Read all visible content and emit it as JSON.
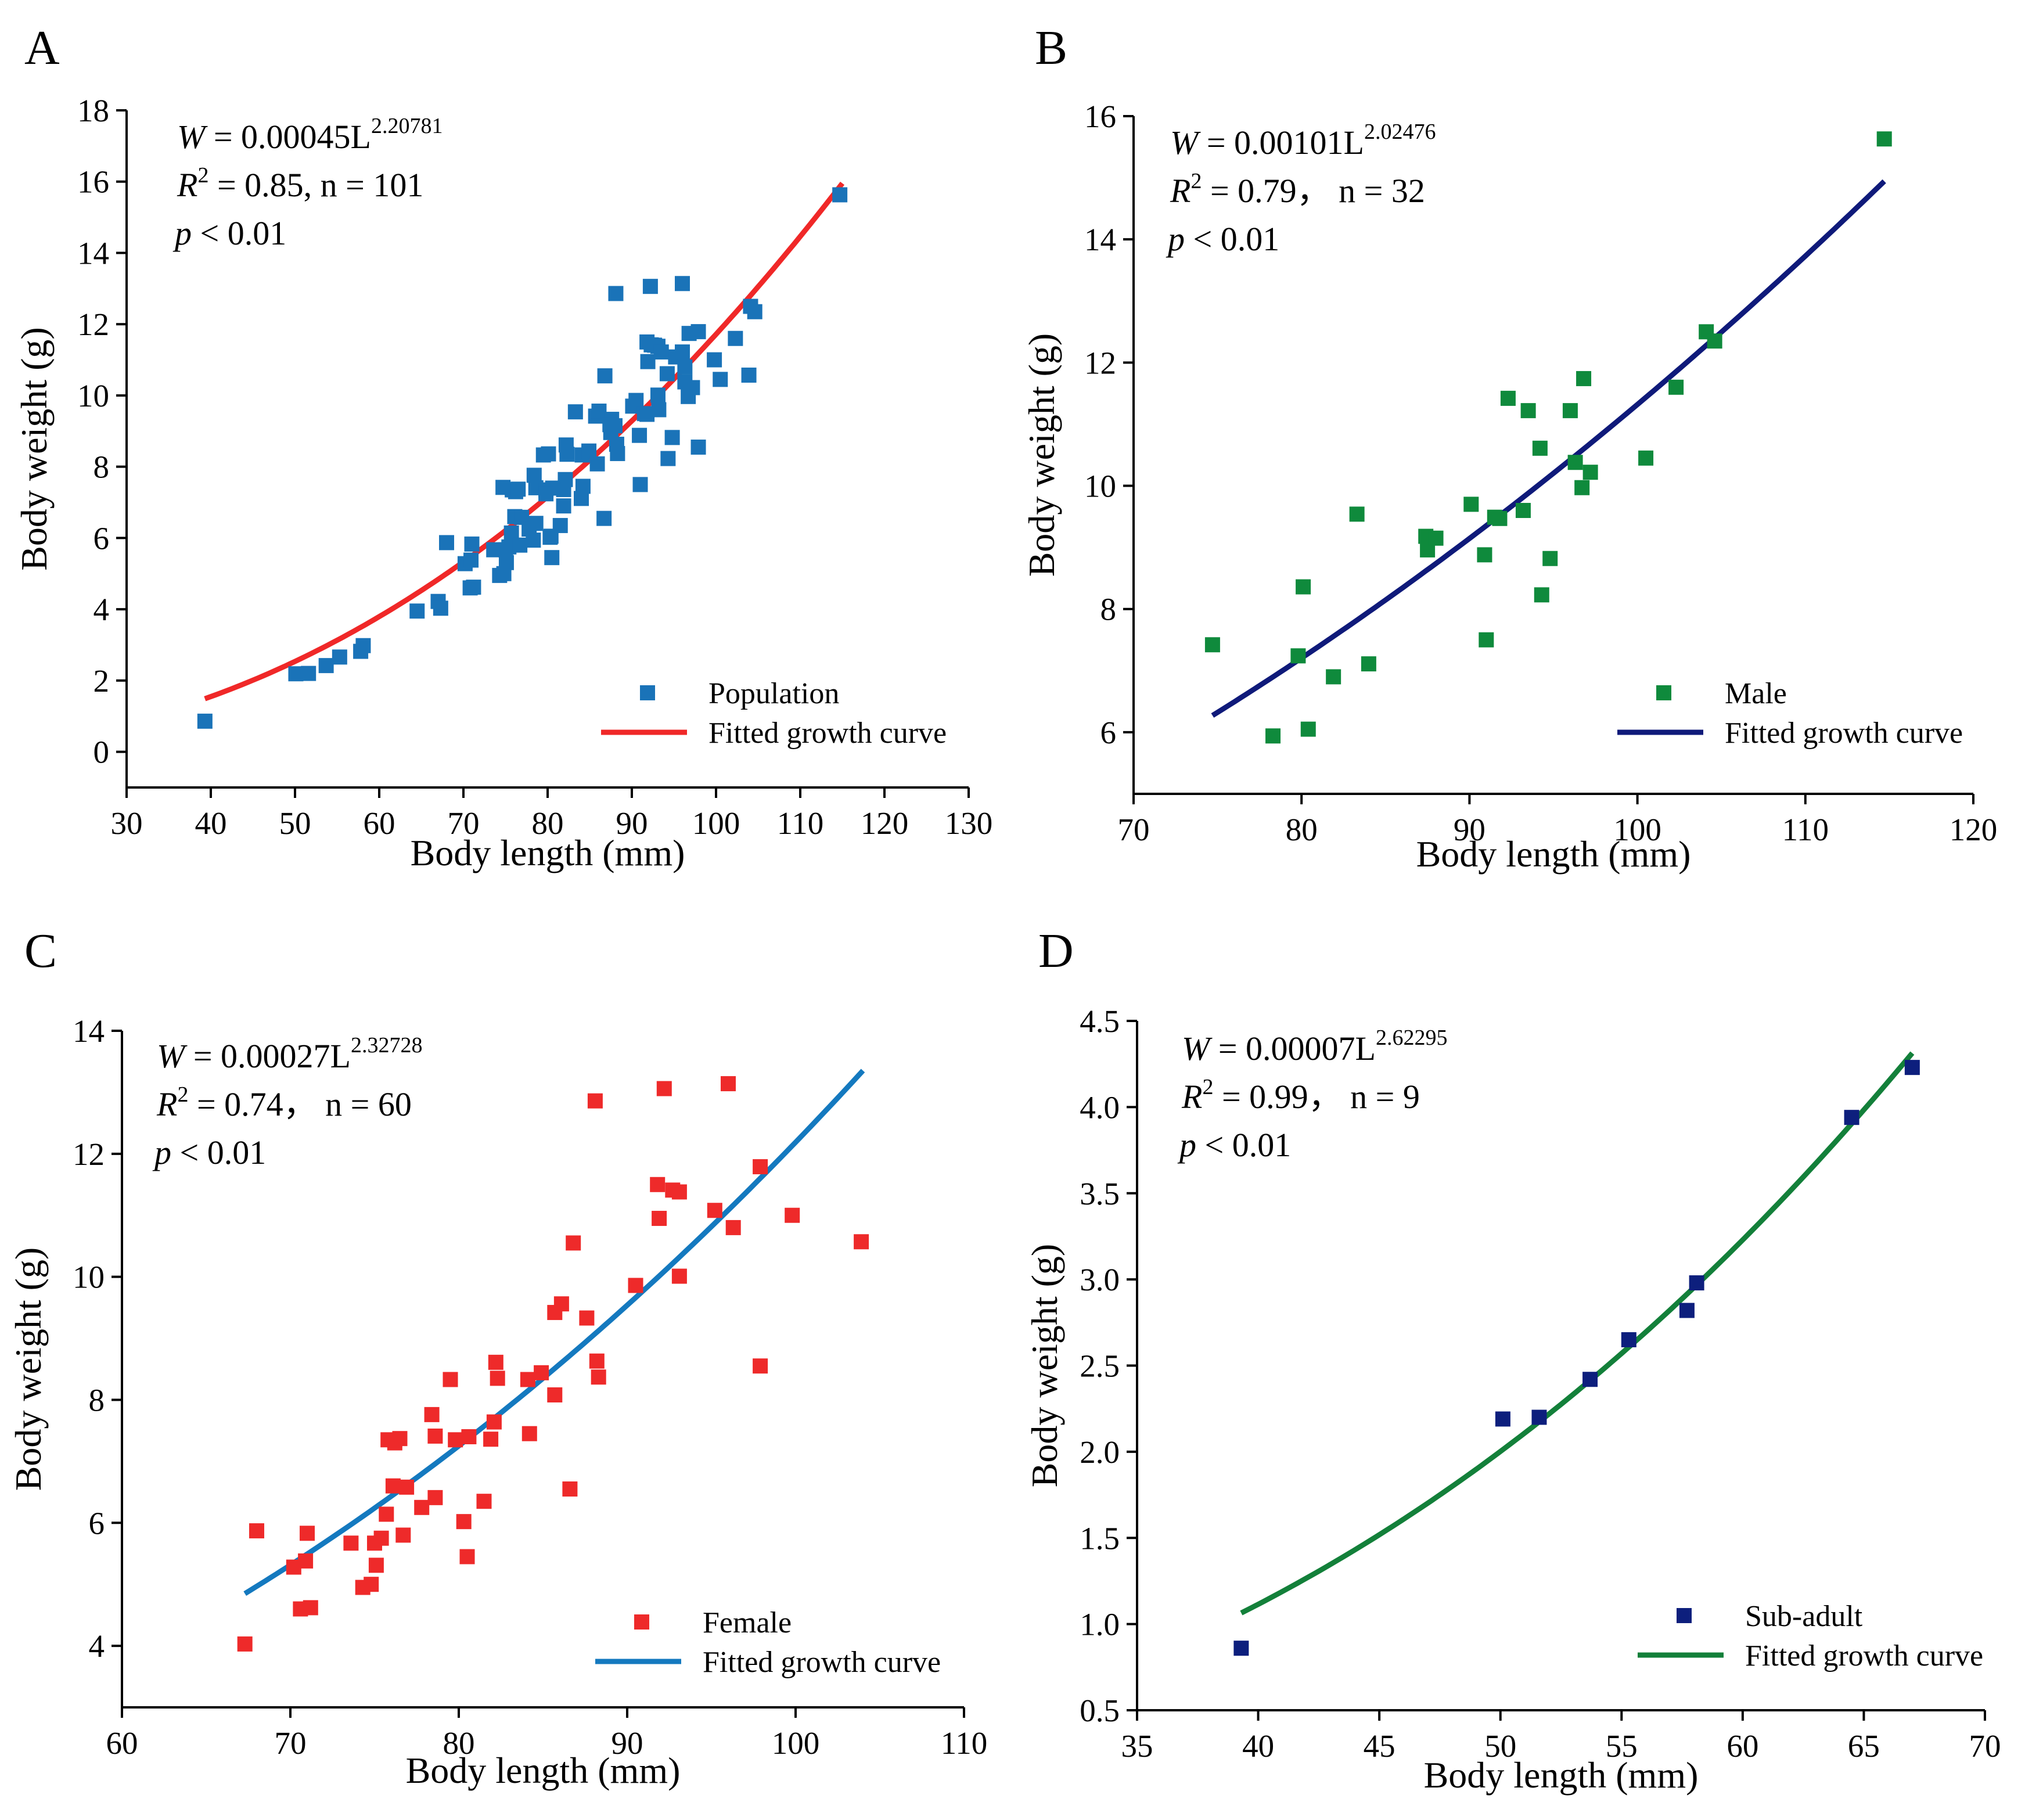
{
  "chart_data": [
    {
      "panel": "A",
      "type": "scatter",
      "xlabel": "Body length (mm)",
      "ylabel": "Body weight (g)",
      "xlim": [
        30,
        130
      ],
      "ylim": [
        -1,
        18
      ],
      "xticks": [
        30,
        40,
        50,
        60,
        70,
        80,
        90,
        100,
        110,
        120,
        130
      ],
      "yticks": [
        0,
        2,
        4,
        6,
        8,
        10,
        12,
        14,
        16,
        18
      ],
      "tick_decimals": 0,
      "equation": {
        "lhs": "W",
        "rhs": " = 0.00045L",
        "exponent": "2.20781",
        "r2_label": "R",
        "r2_sup": "2",
        "r2_value": " = 0.85, n = 101",
        "p_label": "p",
        "p_value": " < 0.01"
      },
      "legend": {
        "position": "bottom-right",
        "points_label": "Population",
        "curve_label": "Fitted growth curve"
      },
      "colors": {
        "points": "#1a73b8",
        "curve": "#f02828"
      },
      "fit": {
        "a": 0.00045,
        "b": 2.20781,
        "x_range": [
          39.3,
          115
        ]
      },
      "points": [
        [
          39.3,
          0.86
        ],
        [
          50.1,
          2.19
        ],
        [
          51.6,
          2.2
        ],
        [
          53.7,
          2.42
        ],
        [
          55.3,
          2.66
        ],
        [
          57.8,
          2.82
        ],
        [
          58.1,
          2.98
        ],
        [
          64.5,
          3.95
        ],
        [
          67.0,
          4.22
        ],
        [
          67.3,
          4.03
        ],
        [
          68.0,
          5.87
        ],
        [
          70.2,
          5.28
        ],
        [
          70.8,
          4.6
        ],
        [
          70.9,
          5.38
        ],
        [
          71.2,
          4.62
        ],
        [
          71.0,
          5.83
        ],
        [
          73.6,
          5.67
        ],
        [
          74.3,
          4.95
        ],
        [
          74.8,
          5.0
        ],
        [
          75.0,
          5.67
        ],
        [
          75.1,
          5.31
        ],
        [
          75.4,
          5.75
        ],
        [
          75.7,
          6.14
        ],
        [
          75.8,
          7.35
        ],
        [
          76.1,
          6.6
        ],
        [
          76.2,
          7.3
        ],
        [
          76.5,
          7.37
        ],
        [
          76.7,
          5.8
        ],
        [
          76.9,
          6.58
        ],
        [
          77.8,
          6.25
        ],
        [
          78.4,
          7.76
        ],
        [
          78.6,
          6.41
        ],
        [
          78.6,
          7.41
        ],
        [
          79.5,
          8.33
        ],
        [
          79.8,
          7.35
        ],
        [
          80.3,
          6.02
        ],
        [
          80.5,
          5.45
        ],
        [
          80.6,
          7.4
        ],
        [
          81.5,
          6.35
        ],
        [
          81.9,
          7.36
        ],
        [
          82.1,
          7.64
        ],
        [
          82.2,
          8.61
        ],
        [
          82.3,
          8.35
        ],
        [
          84.1,
          8.33
        ],
        [
          84.2,
          7.45
        ],
        [
          84.9,
          8.44
        ],
        [
          85.7,
          9.42
        ],
        [
          85.9,
          8.08
        ],
        [
          86.1,
          9.56
        ],
        [
          86.7,
          6.55
        ],
        [
          86.8,
          10.55
        ],
        [
          87.6,
          9.33
        ],
        [
          88.1,
          12.86
        ],
        [
          88.2,
          8.63
        ],
        [
          88.3,
          8.37
        ],
        [
          90.5,
          9.86
        ],
        [
          91.8,
          11.5
        ],
        [
          91.9,
          10.95
        ],
        [
          92.2,
          13.06
        ],
        [
          92.7,
          11.41
        ],
        [
          93.1,
          10.01
        ],
        [
          93.1,
          11.38
        ],
        [
          95.2,
          11.08
        ],
        [
          96.0,
          13.14
        ],
        [
          96.3,
          10.8
        ],
        [
          97.9,
          11.79
        ],
        [
          97.9,
          8.55
        ],
        [
          99.8,
          11.0
        ],
        [
          103.9,
          10.57
        ],
        [
          74.7,
          7.42
        ],
        [
          78.3,
          5.94
        ],
        [
          79.8,
          7.24
        ],
        [
          80.1,
          8.36
        ],
        [
          80.4,
          6.05
        ],
        [
          81.9,
          6.9
        ],
        [
          83.3,
          9.54
        ],
        [
          84.0,
          7.11
        ],
        [
          87.4,
          9.18
        ],
        [
          87.5,
          8.96
        ],
        [
          88.0,
          9.15
        ],
        [
          90.1,
          9.7
        ],
        [
          90.9,
          8.88
        ],
        [
          91.0,
          7.5
        ],
        [
          91.5,
          9.49
        ],
        [
          91.8,
          9.47
        ],
        [
          92.3,
          11.42
        ],
        [
          93.2,
          9.6
        ],
        [
          93.5,
          11.22
        ],
        [
          94.2,
          10.61
        ],
        [
          94.3,
          8.23
        ],
        [
          94.8,
          8.82
        ],
        [
          96.0,
          11.22
        ],
        [
          96.3,
          10.38
        ],
        [
          96.7,
          9.97
        ],
        [
          96.8,
          11.74
        ],
        [
          97.2,
          10.22
        ],
        [
          100.5,
          10.45
        ],
        [
          102.3,
          11.6
        ],
        [
          104.1,
          12.5
        ],
        [
          104.6,
          12.35
        ],
        [
          114.7,
          15.63
        ]
      ]
    },
    {
      "panel": "B",
      "type": "scatter",
      "xlabel": "Body length (mm)",
      "ylabel": "Body weight (g)",
      "xlim": [
        70,
        120
      ],
      "ylim": [
        5,
        16
      ],
      "xticks": [
        70,
        80,
        90,
        100,
        110,
        120
      ],
      "yticks": [
        6,
        8,
        10,
        12,
        14,
        16
      ],
      "tick_decimals": 0,
      "equation": {
        "lhs": "W",
        "rhs": " = 0.00101L",
        "exponent": "2.02476",
        "r2_label": "R",
        "r2_sup": "2",
        "r2_value": " = 0.79，  n = 32",
        "p_label": "p",
        "p_value": " < 0.01"
      },
      "legend": {
        "position": "bottom-right",
        "points_label": "Male",
        "curve_label": "Fitted growth curve"
      },
      "colors": {
        "points": "#0f8a3c",
        "curve": "#0f1a7a"
      },
      "fit": {
        "a": 0.00101,
        "b": 2.02476,
        "x_range": [
          74.7,
          114.7
        ]
      },
      "points": [
        [
          74.7,
          7.42
        ],
        [
          78.3,
          5.94
        ],
        [
          79.8,
          7.24
        ],
        [
          80.1,
          8.36
        ],
        [
          80.4,
          6.05
        ],
        [
          81.9,
          6.9
        ],
        [
          83.3,
          9.54
        ],
        [
          84.0,
          7.11
        ],
        [
          87.4,
          9.18
        ],
        [
          87.5,
          8.96
        ],
        [
          88.0,
          9.15
        ],
        [
          90.1,
          9.7
        ],
        [
          90.9,
          8.88
        ],
        [
          91.0,
          7.5
        ],
        [
          91.5,
          9.49
        ],
        [
          91.8,
          9.47
        ],
        [
          92.3,
          11.42
        ],
        [
          93.2,
          9.6
        ],
        [
          93.5,
          11.22
        ],
        [
          94.2,
          10.61
        ],
        [
          94.3,
          8.23
        ],
        [
          94.8,
          8.82
        ],
        [
          96.0,
          11.22
        ],
        [
          96.3,
          10.38
        ],
        [
          96.7,
          9.97
        ],
        [
          96.8,
          11.74
        ],
        [
          97.2,
          10.22
        ],
        [
          100.5,
          10.45
        ],
        [
          102.3,
          11.6
        ],
        [
          104.1,
          12.5
        ],
        [
          104.6,
          12.35
        ],
        [
          114.7,
          15.63
        ]
      ]
    },
    {
      "panel": "C",
      "type": "scatter",
      "xlabel": "Body length (mm)",
      "ylabel": "Body weight (g)",
      "xlim": [
        60,
        110
      ],
      "ylim": [
        3,
        14
      ],
      "xticks": [
        60,
        70,
        80,
        90,
        100,
        110
      ],
      "yticks": [
        4,
        6,
        8,
        10,
        12,
        14
      ],
      "tick_decimals": 0,
      "equation": {
        "lhs": "W",
        "rhs": " = 0.00027L",
        "exponent": "2.32728",
        "r2_label": "R",
        "r2_sup": "2",
        "r2_value": " = 0.74，  n = 60",
        "p_label": "p",
        "p_value": " < 0.01"
      },
      "legend": {
        "position": "bottom-right",
        "points_label": "Female",
        "curve_label": "Fitted growth curve"
      },
      "colors": {
        "points": "#ee2a2a",
        "curve": "#1479bf"
      },
      "fit": {
        "a": 0.00027,
        "b": 2.32728,
        "x_range": [
          67.3,
          104
        ]
      },
      "points": [
        [
          67.3,
          4.03
        ],
        [
          68.0,
          5.87
        ],
        [
          70.2,
          5.28
        ],
        [
          70.6,
          4.6
        ],
        [
          70.9,
          5.38
        ],
        [
          71.2,
          4.62
        ],
        [
          71.0,
          5.83
        ],
        [
          73.6,
          5.67
        ],
        [
          74.3,
          4.95
        ],
        [
          74.8,
          5.0
        ],
        [
          75.0,
          5.67
        ],
        [
          75.1,
          5.31
        ],
        [
          75.4,
          5.75
        ],
        [
          75.7,
          6.14
        ],
        [
          75.8,
          7.35
        ],
        [
          76.1,
          6.6
        ],
        [
          76.2,
          7.3
        ],
        [
          76.5,
          7.37
        ],
        [
          76.7,
          5.8
        ],
        [
          76.9,
          6.58
        ],
        [
          77.8,
          6.25
        ],
        [
          78.4,
          7.76
        ],
        [
          78.6,
          6.41
        ],
        [
          78.6,
          7.41
        ],
        [
          79.5,
          8.33
        ],
        [
          79.8,
          7.35
        ],
        [
          80.3,
          6.02
        ],
        [
          80.5,
          5.45
        ],
        [
          80.6,
          7.4
        ],
        [
          81.5,
          6.35
        ],
        [
          81.9,
          7.36
        ],
        [
          82.1,
          7.64
        ],
        [
          82.2,
          8.61
        ],
        [
          82.3,
          8.35
        ],
        [
          84.1,
          8.33
        ],
        [
          84.2,
          7.45
        ],
        [
          84.9,
          8.44
        ],
        [
          85.7,
          9.42
        ],
        [
          85.7,
          8.08
        ],
        [
          86.1,
          9.56
        ],
        [
          86.6,
          6.55
        ],
        [
          86.8,
          10.55
        ],
        [
          87.6,
          9.33
        ],
        [
          88.1,
          12.86
        ],
        [
          88.2,
          8.63
        ],
        [
          88.3,
          8.37
        ],
        [
          90.5,
          9.86
        ],
        [
          91.8,
          11.5
        ],
        [
          91.9,
          10.95
        ],
        [
          92.2,
          13.06
        ],
        [
          92.7,
          11.41
        ],
        [
          93.1,
          10.01
        ],
        [
          93.1,
          11.38
        ],
        [
          95.2,
          11.08
        ],
        [
          96.0,
          13.14
        ],
        [
          96.3,
          10.8
        ],
        [
          97.9,
          11.79
        ],
        [
          97.9,
          8.55
        ],
        [
          99.8,
          11.0
        ],
        [
          103.9,
          10.57
        ]
      ]
    },
    {
      "panel": "D",
      "type": "scatter",
      "xlabel": "Body length (mm)",
      "ylabel": "Body weight (g)",
      "xlim": [
        35,
        70
      ],
      "ylim": [
        0.5,
        4.5
      ],
      "xticks": [
        35,
        40,
        45,
        50,
        55,
        60,
        65,
        70
      ],
      "yticks": [
        0.5,
        1.0,
        1.5,
        2.0,
        2.5,
        3.0,
        3.5,
        4.0,
        4.5
      ],
      "tick_decimals": 1,
      "equation": {
        "lhs": "W",
        "rhs": " = 0.00007L",
        "exponent": "2.62295",
        "r2_label": "R",
        "r2_sup": "2",
        "r2_value": " = 0.99，  n = 9",
        "p_label": "p",
        "p_value": " < 0.01"
      },
      "legend": {
        "position": "bottom-right",
        "points_label": "Sub-adult",
        "curve_label": "Fitted growth curve"
      },
      "colors": {
        "points": "#0d1f7d",
        "curve": "#13803a"
      },
      "fit": {
        "a": 7e-05,
        "b": 2.62295,
        "x_range": [
          39.3,
          67
        ]
      },
      "points": [
        [
          39.3,
          0.86
        ],
        [
          50.1,
          2.19
        ],
        [
          51.6,
          2.2
        ],
        [
          53.7,
          2.42
        ],
        [
          55.3,
          2.65
        ],
        [
          57.7,
          2.82
        ],
        [
          58.1,
          2.98
        ],
        [
          64.5,
          3.94
        ],
        [
          67.0,
          4.23
        ]
      ]
    }
  ]
}
